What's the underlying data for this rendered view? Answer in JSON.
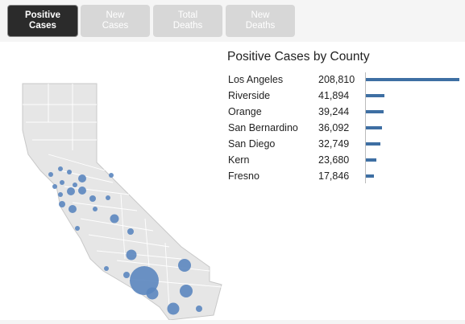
{
  "tabs": [
    {
      "label": "Positive\nCases",
      "active": true
    },
    {
      "label": "New\nCases",
      "active": false
    },
    {
      "label": "Total\nDeaths",
      "active": false
    },
    {
      "label": "New\nDeaths",
      "active": false
    }
  ],
  "panel": {
    "title": "Positive Cases by County",
    "rows": [
      {
        "county": "Los Angeles",
        "value": "208,810",
        "num": 208810
      },
      {
        "county": "Riverside",
        "value": "41,894",
        "num": 41894
      },
      {
        "county": "Orange",
        "value": "39,244",
        "num": 39244
      },
      {
        "county": "San Bernardino",
        "value": "36,092",
        "num": 36092
      },
      {
        "county": "San Diego",
        "value": "32,749",
        "num": 32749
      },
      {
        "county": "Kern",
        "value": "23,680",
        "num": 23680
      },
      {
        "county": "Fresno",
        "value": "17,846",
        "num": 17846
      }
    ]
  },
  "colors": {
    "accent": "#3e6fa3",
    "map_fill": "#e6e6e6",
    "active_tab": "#2b2b2b",
    "inactive_tab": "#d7d7d7"
  }
}
